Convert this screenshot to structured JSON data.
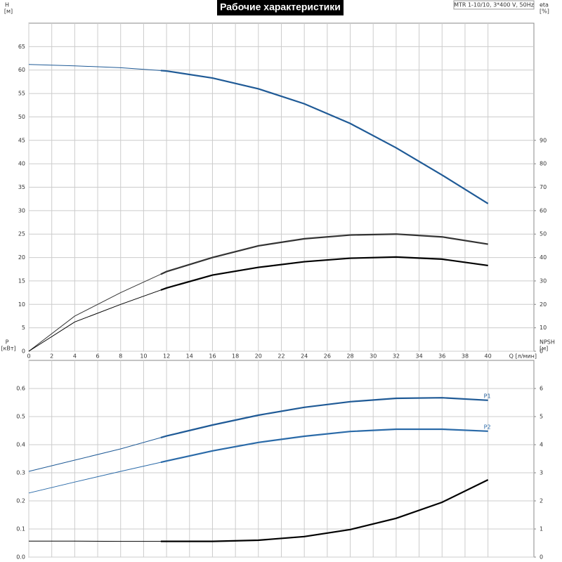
{
  "header": {
    "title": "Рабочие характеристики",
    "model": "MTR 1-10/10, 3*400 V, 50Hz"
  },
  "chart_data": [
    {
      "type": "line",
      "x": [
        0,
        4,
        8,
        12,
        16,
        20,
        24,
        28,
        32,
        36,
        40
      ],
      "xlim": [
        0,
        44
      ],
      "xticks": [
        0,
        2,
        4,
        6,
        8,
        10,
        12,
        14,
        16,
        18,
        20,
        22,
        24,
        26,
        28,
        30,
        32,
        34,
        36,
        38,
        40
      ],
      "xtick_labels": true,
      "x_label": "Q [л/мин]",
      "y_label": "H",
      "y_unit": "[м]",
      "ylim": [
        0,
        70
      ],
      "yticks": [
        0,
        5,
        10,
        15,
        20,
        25,
        30,
        35,
        40,
        45,
        50,
        55,
        60,
        65
      ],
      "y2_label": "eta",
      "y2_unit": "[%]",
      "y2lim": [
        0,
        140
      ],
      "y2ticks": [
        0,
        10,
        20,
        30,
        40,
        50,
        60,
        70,
        80,
        90
      ],
      "grid": true,
      "bold_from": 11.5,
      "series": [
        {
          "color": "#1f5a96",
          "values": [
            61.2,
            60.9,
            60.5,
            59.8,
            58.3,
            56,
            52.8,
            48.6,
            43.4,
            37.6,
            31.5
          ]
        },
        {
          "color": "#333333",
          "axis": "y2",
          "values": [
            0,
            15,
            25,
            34,
            40,
            45,
            48,
            49.6,
            50,
            48.8,
            45.7
          ]
        },
        {
          "color": "#000000",
          "axis": "y2",
          "values": [
            0,
            12.5,
            20,
            27,
            32.5,
            35.8,
            38.2,
            39.7,
            40.2,
            39.3,
            36.6
          ]
        }
      ]
    },
    {
      "type": "line",
      "x": [
        0,
        4,
        8,
        12,
        16,
        20,
        24,
        28,
        32,
        36,
        40
      ],
      "xlim": [
        0,
        44
      ],
      "xticks": [
        0,
        2,
        4,
        6,
        8,
        10,
        12,
        14,
        16,
        18,
        20,
        22,
        24,
        26,
        28,
        30,
        32,
        34,
        36,
        38,
        40
      ],
      "xtick_labels": false,
      "y_label": "P",
      "y_unit": "[кВт]",
      "ylim": [
        0,
        0.7
      ],
      "yticks": [
        {
          "value": 0,
          "label": "0.0"
        },
        0.1,
        0.2,
        0.3,
        0.4,
        0.5,
        0.6
      ],
      "y2_label": "NPSH",
      "y2_unit": "[м]",
      "y2lim": [
        0,
        7
      ],
      "y2ticks": [
        0,
        1,
        2,
        3,
        4,
        5,
        6
      ],
      "grid": true,
      "bold_from": 11.5,
      "series": [
        {
          "name": "P1",
          "color": "#1f5a96",
          "values": [
            0.305,
            0.345,
            0.385,
            0.431,
            0.47,
            0.505,
            0.533,
            0.553,
            0.565,
            0.567,
            0.558
          ]
        },
        {
          "name": "P2",
          "color": "#2a6aa8",
          "values": [
            0.228,
            0.267,
            0.305,
            0.342,
            0.378,
            0.408,
            0.43,
            0.447,
            0.455,
            0.455,
            0.448
          ]
        },
        {
          "color": "#000000",
          "axis": "y2",
          "values": [
            0.57,
            0.57,
            0.56,
            0.56,
            0.56,
            0.6,
            0.73,
            0.98,
            1.38,
            1.95,
            2.75
          ]
        }
      ]
    }
  ]
}
